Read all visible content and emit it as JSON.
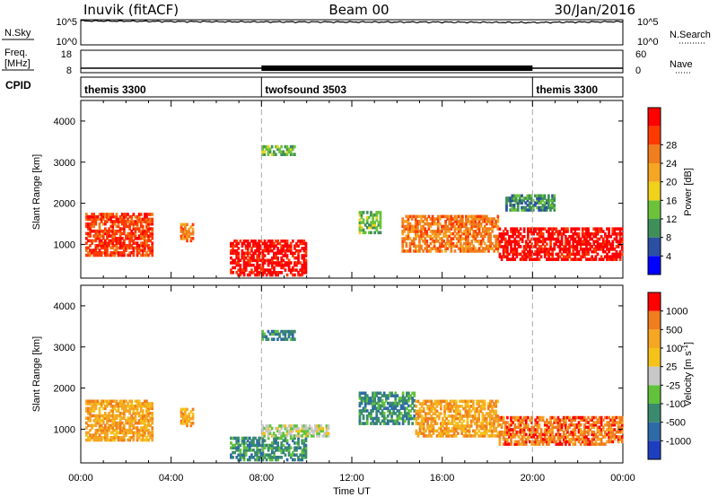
{
  "header": {
    "station": "Inuvik (fitACF)",
    "beam": "Beam 00",
    "date": "30/Jan/2016"
  },
  "panels": {
    "nsky": {
      "label": "N.Sky",
      "ticks": [
        "10^5",
        "10^0"
      ],
      "right_label": "N.Search",
      "right_ticks": [
        "10^5",
        "10^0"
      ]
    },
    "freq": {
      "label_top": "Freq.",
      "label_bottom": "[MHz]",
      "ticks": [
        "18",
        "8"
      ],
      "right_label": "Nave",
      "right_ticks": [
        "60",
        "0"
      ]
    },
    "cpid": {
      "label": "CPID"
    }
  },
  "colors": {
    "power_scale": [
      "#0000ff",
      "#2a4fa3",
      "#3f8f5a",
      "#6cc33b",
      "#f0d21a",
      "#f5a623",
      "#f07d1e",
      "#ff3a00",
      "#ff0000"
    ],
    "velocity_scale": [
      "#1d3fbf",
      "#2d6aa8",
      "#3a8a6e",
      "#62c23c",
      "#c8c8c8",
      "#f5c21a",
      "#f5a623",
      "#f07d1e",
      "#ff0000"
    ]
  },
  "chart_data": [
    {
      "type": "line",
      "title": "N.Sky / N.Search",
      "ylabel": "N.Sky",
      "yscale": "log",
      "ylim": [
        1,
        100000
      ],
      "x": [
        "00:00",
        "04:00",
        "08:00",
        "12:00",
        "16:00",
        "20:00",
        "00:00"
      ],
      "series": [
        {
          "name": "N.Sky",
          "values": [
            60000,
            45000,
            38000,
            36000,
            34000,
            28000,
            42000
          ]
        }
      ]
    },
    {
      "type": "line",
      "title": "Freq. / Nave",
      "ylabel": "Freq. [MHz]",
      "ylim": [
        8,
        18
      ],
      "x": [
        "00:00",
        "04:00",
        "08:00",
        "12:00",
        "16:00",
        "20:00",
        "00:00"
      ],
      "series": [
        {
          "name": "Freq.",
          "values": [
            10,
            10,
            10,
            10,
            10,
            10,
            10
          ]
        }
      ]
    },
    {
      "type": "table",
      "title": "CPID",
      "segments": [
        {
          "name": "themis 3300",
          "start": "00:00",
          "end": "08:00"
        },
        {
          "name": "twofsound 3503",
          "start": "08:00",
          "end": "20:00"
        },
        {
          "name": "themis 3300",
          "start": "20:00",
          "end": "00:00"
        }
      ]
    },
    {
      "type": "heatmap",
      "title": "Power",
      "xlabel": "",
      "ylabel": "Slant Range [km]",
      "colorbar_label": "Power [dB]",
      "colorbar_ticks": [
        "4",
        "8",
        "12",
        "16",
        "20",
        "24",
        "28"
      ],
      "ylim": [
        180,
        4500
      ],
      "yticks": [
        "1000",
        "2000",
        "3000",
        "4000"
      ],
      "xticks": [
        "00:00",
        "04:00",
        "08:00",
        "12:00",
        "16:00",
        "20:00",
        "00:00"
      ],
      "regions": [
        {
          "t0": 0.2,
          "t1": 3.2,
          "r0": 700,
          "r1": 1750,
          "level": 7
        },
        {
          "t0": 4.4,
          "t1": 5.0,
          "r0": 1050,
          "r1": 1500,
          "level": 6
        },
        {
          "t0": 6.6,
          "t1": 10.0,
          "r0": 220,
          "r1": 1100,
          "level": 8
        },
        {
          "t0": 8.0,
          "t1": 9.5,
          "r0": 3150,
          "r1": 3400,
          "level": 3
        },
        {
          "t0": 12.3,
          "t1": 13.3,
          "r0": 1250,
          "r1": 1800,
          "level": 3
        },
        {
          "t0": 14.2,
          "t1": 18.5,
          "r0": 800,
          "r1": 1700,
          "level": 6
        },
        {
          "t0": 18.5,
          "t1": 24.0,
          "r0": 600,
          "r1": 1400,
          "level": 8
        },
        {
          "t0": 18.8,
          "t1": 21.0,
          "r0": 1800,
          "r1": 2200,
          "level": 2
        }
      ]
    },
    {
      "type": "heatmap",
      "title": "Velocity",
      "xlabel": "Time UT",
      "ylabel": "Slant Range [km]",
      "colorbar_label": "Velocity [m s-1]",
      "colorbar_ticks": [
        "1000",
        "500",
        "100",
        "25",
        "-25",
        "-100",
        "-500",
        "-1000"
      ],
      "ylim": [
        180,
        4500
      ],
      "yticks": [
        "1000",
        "2000",
        "3000",
        "4000"
      ],
      "xticks": [
        "00:00",
        "04:00",
        "08:00",
        "12:00",
        "16:00",
        "20:00",
        "00:00"
      ],
      "regions": [
        {
          "t0": 0.2,
          "t1": 3.2,
          "r0": 700,
          "r1": 1700,
          "level": 6
        },
        {
          "t0": 4.4,
          "t1": 5.0,
          "r0": 1050,
          "r1": 1500,
          "level": 6
        },
        {
          "t0": 6.6,
          "t1": 10.0,
          "r0": 220,
          "r1": 800,
          "level": 2
        },
        {
          "t0": 8.0,
          "t1": 11.0,
          "r0": 800,
          "r1": 1100,
          "level": 4
        },
        {
          "t0": 8.0,
          "t1": 9.5,
          "r0": 3150,
          "r1": 3400,
          "level": 2
        },
        {
          "t0": 12.3,
          "t1": 14.8,
          "r0": 1100,
          "r1": 1900,
          "level": 2
        },
        {
          "t0": 14.8,
          "t1": 18.5,
          "r0": 800,
          "r1": 1700,
          "level": 6
        },
        {
          "t0": 18.5,
          "t1": 24.0,
          "r0": 600,
          "r1": 1300,
          "level": 7
        }
      ]
    }
  ],
  "xaxis": {
    "label": "Time UT",
    "ticks": [
      "00:00",
      "04:00",
      "08:00",
      "12:00",
      "16:00",
      "20:00",
      "00:00"
    ]
  },
  "power": {
    "ylabel": "Slant Range [km]",
    "cb_label": "Power [dB]"
  },
  "velocity": {
    "ylabel": "Slant Range [km]",
    "cb_label": "Velocity [m s",
    "cb_label_sup": "-1",
    "cb_label_end": "]"
  }
}
